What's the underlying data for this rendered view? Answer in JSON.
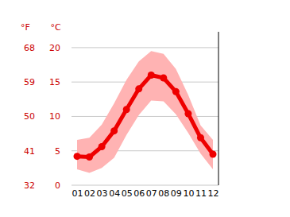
{
  "chart_data": {
    "type": "line",
    "categories": [
      "01",
      "02",
      "03",
      "04",
      "05",
      "06",
      "07",
      "08",
      "09",
      "10",
      "11",
      "12"
    ],
    "ylabel": "°C",
    "y2label": "°F",
    "ylim": [
      0,
      22.3
    ],
    "yticks": [
      0,
      5,
      10,
      15,
      20
    ],
    "y2lim": [
      32,
      72.14
    ],
    "y2ticks": [
      32,
      41,
      50,
      59,
      68
    ],
    "grid": true,
    "series": [
      {
        "type": "area",
        "color": "#ffb3b3",
        "values": [
          6.6,
          6.9,
          8.8,
          11.9,
          15.3,
          18.0,
          19.5,
          19.1,
          16.9,
          13.1,
          8.7,
          6.6
        ],
        "low": [
          2.3,
          1.8,
          2.5,
          4.0,
          7.3,
          10.2,
          12.3,
          12.2,
          10.3,
          7.6,
          4.6,
          2.3
        ]
      },
      {
        "type": "line",
        "color": "#ee0000",
        "marker": "circle",
        "values": [
          4.2,
          4.1,
          5.6,
          7.9,
          11.0,
          14.0,
          16.0,
          15.6,
          13.6,
          10.4,
          6.9,
          4.5
        ]
      }
    ]
  }
}
